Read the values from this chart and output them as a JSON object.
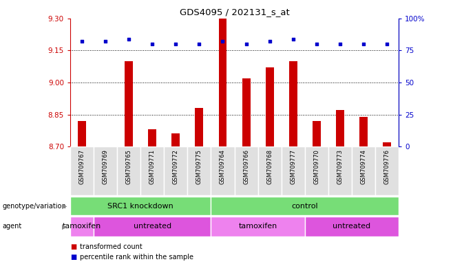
{
  "title": "GDS4095 / 202131_s_at",
  "samples": [
    "GSM709767",
    "GSM709769",
    "GSM709765",
    "GSM709771",
    "GSM709772",
    "GSM709775",
    "GSM709764",
    "GSM709766",
    "GSM709768",
    "GSM709777",
    "GSM709770",
    "GSM709773",
    "GSM709774",
    "GSM709776"
  ],
  "bar_values": [
    8.82,
    8.7,
    9.1,
    8.78,
    8.76,
    8.88,
    9.3,
    9.02,
    9.07,
    9.1,
    8.82,
    8.87,
    8.84,
    8.72
  ],
  "dot_values": [
    82,
    82,
    84,
    80,
    80,
    80,
    82,
    80,
    82,
    84,
    80,
    80,
    80,
    80
  ],
  "ylim_left": [
    8.7,
    9.3
  ],
  "ylim_right": [
    0,
    100
  ],
  "yticks_left": [
    8.7,
    8.85,
    9.0,
    9.15,
    9.3
  ],
  "yticks_right": [
    0,
    25,
    50,
    75,
    100
  ],
  "hlines": [
    8.85,
    9.0,
    9.15
  ],
  "bar_color": "#cc0000",
  "dot_color": "#0000cc",
  "bar_width": 0.35,
  "genotype_groups": [
    {
      "label": "SRC1 knockdown",
      "start": 0,
      "end": 6
    },
    {
      "label": "control",
      "start": 6,
      "end": 14
    }
  ],
  "agent_groups": [
    {
      "label": "tamoxifen",
      "start": 0,
      "end": 1
    },
    {
      "label": "untreated",
      "start": 1,
      "end": 6
    },
    {
      "label": "tamoxifen",
      "start": 6,
      "end": 10
    },
    {
      "label": "untreated",
      "start": 10,
      "end": 14
    }
  ],
  "genotype_color": "#77dd77",
  "agent_tamoxifen_color": "#ee82ee",
  "agent_untreated_color": "#dd55dd",
  "legend_items": [
    {
      "label": "transformed count",
      "color": "#cc0000"
    },
    {
      "label": "percentile rank within the sample",
      "color": "#0000cc"
    }
  ],
  "left_label_color": "#cc0000",
  "right_label_color": "#0000cc"
}
